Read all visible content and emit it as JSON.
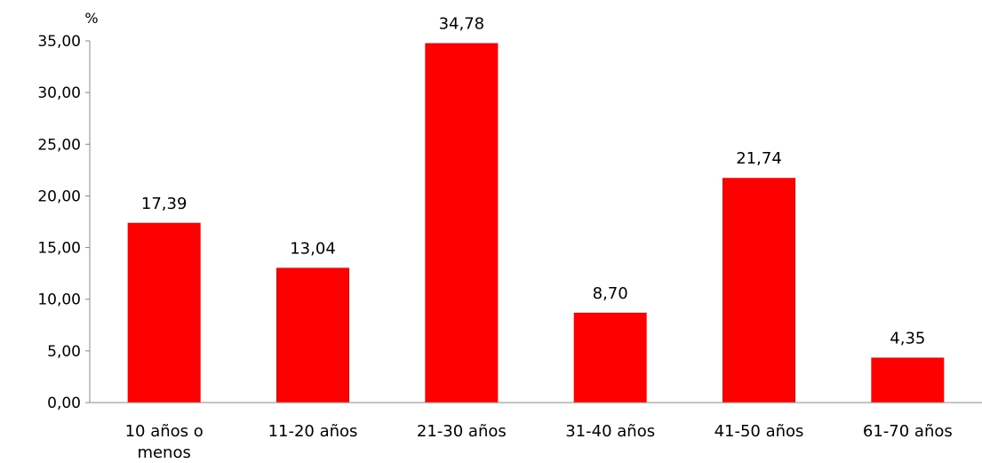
{
  "chart_data": {
    "type": "bar",
    "ylabel": "%",
    "xlabel": "",
    "title": "",
    "categories": [
      [
        "10 años o",
        "menos"
      ],
      [
        "11-20 años"
      ],
      [
        "21-30 años"
      ],
      [
        "31-40 años"
      ],
      [
        "41-50 años"
      ],
      [
        "61-70 años"
      ]
    ],
    "values": [
      17.39,
      13.04,
      34.78,
      8.7,
      21.74,
      4.35
    ],
    "labels": [
      "17,39",
      "13,04",
      "34,78",
      "8,70",
      "21,74",
      "4,35"
    ],
    "ylim": [
      0,
      35
    ],
    "ytick_labels": [
      "0,00",
      "5,00",
      "10,00",
      "15,00",
      "20,00",
      "25,00",
      "30,00",
      "35,00"
    ],
    "ytick_values": [
      0,
      5,
      10,
      15,
      20,
      25,
      30,
      35
    ],
    "grid": false,
    "legend": "none",
    "bar_color": "#ff0000"
  }
}
